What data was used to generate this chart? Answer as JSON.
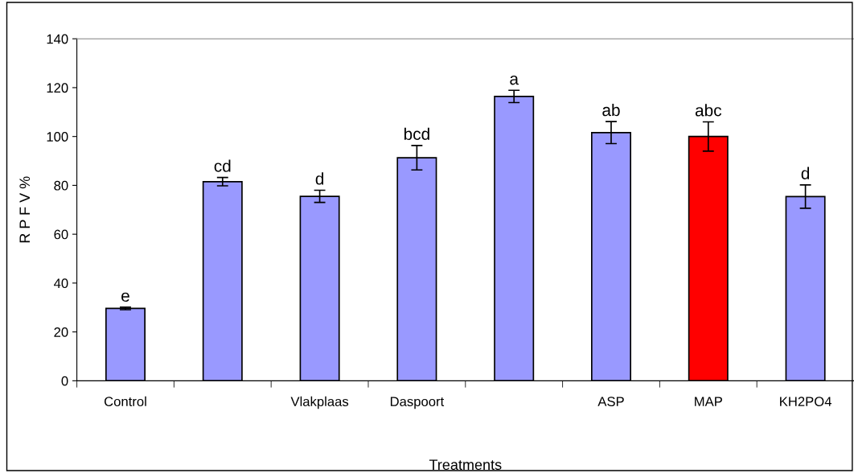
{
  "chart_data": {
    "type": "bar",
    "xlabel": "Treatments",
    "ylabel": "R P F V %",
    "categories": [
      "Control",
      null,
      "Vlakplaas",
      "Daspoort",
      null,
      "ASP",
      "MAP",
      "KH2PO4"
    ],
    "values": [
      29.6,
      81.5,
      75.5,
      91.3,
      116.4,
      101.6,
      100,
      75.4
    ],
    "errors": [
      0.5,
      1.7,
      2.5,
      5,
      2.5,
      4.5,
      6,
      4.8
    ],
    "value_labels": [
      "e",
      "cd",
      "d",
      "bcd",
      "a",
      "ab",
      "abc",
      "d"
    ],
    "colors": [
      "#9999ff",
      "#9999ff",
      "#9999ff",
      "#9999ff",
      "#9999ff",
      "#9999ff",
      "#ff0000",
      "#9999ff"
    ],
    "ylim": [
      0,
      140
    ],
    "yticks": [
      0,
      20,
      40,
      60,
      80,
      100,
      120,
      140
    ],
    "grid": false,
    "legend": false
  }
}
